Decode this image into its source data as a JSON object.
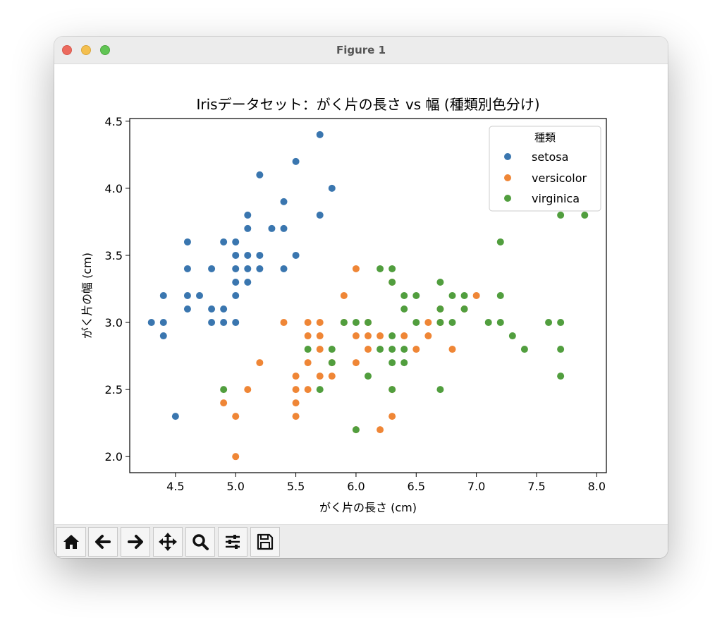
{
  "window": {
    "title": "Figure 1"
  },
  "toolbar": {
    "buttons": [
      {
        "name": "home-button",
        "icon": "home-icon"
      },
      {
        "name": "back-button",
        "icon": "arrow-left-icon"
      },
      {
        "name": "forward-button",
        "icon": "arrow-right-icon"
      },
      {
        "name": "pan-button",
        "icon": "move-icon"
      },
      {
        "name": "zoom-button",
        "icon": "magnifier-icon"
      },
      {
        "name": "configure-subplots-button",
        "icon": "sliders-icon"
      },
      {
        "name": "save-button",
        "icon": "floppy-disk-icon"
      }
    ]
  },
  "chart_data": {
    "type": "scatter",
    "title": "Irisデータセット：がく片の長さ vs 幅 (種類別色分け)",
    "xlabel": "がく片の長さ (cm)",
    "ylabel": "がく片の幅 (cm)",
    "xlim": [
      4.12,
      8.08
    ],
    "ylim": [
      1.88,
      4.52
    ],
    "xticks": [
      "4.5",
      "5.0",
      "5.5",
      "6.0",
      "6.5",
      "7.0",
      "7.5",
      "8.0"
    ],
    "yticks": [
      "2.0",
      "2.5",
      "3.0",
      "3.5",
      "4.0",
      "4.5"
    ],
    "grid": false,
    "legend": {
      "title": "種類",
      "position": "top-right"
    },
    "series": [
      {
        "name": "setosa",
        "color": "#3a76af",
        "points": [
          [
            4.3,
            3.0
          ],
          [
            4.4,
            3.2
          ],
          [
            4.4,
            3.0
          ],
          [
            4.4,
            2.9
          ],
          [
            4.5,
            2.3
          ],
          [
            4.6,
            3.6
          ],
          [
            4.6,
            3.4
          ],
          [
            4.6,
            3.2
          ],
          [
            4.6,
            3.1
          ],
          [
            4.7,
            3.2
          ],
          [
            4.8,
            3.4
          ],
          [
            4.8,
            3.1
          ],
          [
            4.8,
            3.0
          ],
          [
            4.9,
            3.6
          ],
          [
            4.9,
            3.1
          ],
          [
            4.9,
            3.0
          ],
          [
            5.0,
            3.6
          ],
          [
            5.0,
            3.5
          ],
          [
            5.0,
            3.4
          ],
          [
            5.0,
            3.3
          ],
          [
            5.0,
            3.2
          ],
          [
            5.0,
            3.0
          ],
          [
            5.1,
            3.8
          ],
          [
            5.1,
            3.7
          ],
          [
            5.1,
            3.5
          ],
          [
            5.1,
            3.4
          ],
          [
            5.1,
            3.3
          ],
          [
            5.2,
            4.1
          ],
          [
            5.2,
            3.5
          ],
          [
            5.2,
            3.4
          ],
          [
            5.3,
            3.7
          ],
          [
            5.4,
            3.9
          ],
          [
            5.4,
            3.7
          ],
          [
            5.4,
            3.4
          ],
          [
            5.5,
            4.2
          ],
          [
            5.5,
            3.5
          ],
          [
            5.7,
            4.4
          ],
          [
            5.7,
            3.8
          ],
          [
            5.8,
            4.0
          ]
        ]
      },
      {
        "name": "versicolor",
        "color": "#ef8636",
        "points": [
          [
            4.9,
            2.4
          ],
          [
            5.0,
            2.3
          ],
          [
            5.0,
            2.0
          ],
          [
            5.1,
            2.5
          ],
          [
            5.2,
            2.7
          ],
          [
            5.4,
            3.0
          ],
          [
            5.5,
            2.6
          ],
          [
            5.5,
            2.5
          ],
          [
            5.5,
            2.4
          ],
          [
            5.5,
            2.3
          ],
          [
            5.6,
            3.0
          ],
          [
            5.6,
            2.9
          ],
          [
            5.6,
            2.7
          ],
          [
            5.6,
            2.5
          ],
          [
            5.7,
            3.0
          ],
          [
            5.7,
            2.9
          ],
          [
            5.7,
            2.8
          ],
          [
            5.7,
            2.6
          ],
          [
            5.8,
            2.6
          ],
          [
            5.8,
            2.7
          ],
          [
            5.9,
            3.2
          ],
          [
            5.9,
            3.0
          ],
          [
            6.0,
            3.4
          ],
          [
            6.0,
            2.9
          ],
          [
            6.0,
            2.7
          ],
          [
            6.0,
            2.2
          ],
          [
            6.1,
            3.0
          ],
          [
            6.1,
            2.9
          ],
          [
            6.1,
            2.8
          ],
          [
            6.2,
            2.9
          ],
          [
            6.2,
            2.2
          ],
          [
            6.3,
            2.5
          ],
          [
            6.3,
            2.3
          ],
          [
            6.3,
            3.3
          ],
          [
            6.4,
            2.9
          ],
          [
            6.5,
            2.8
          ],
          [
            6.6,
            3.0
          ],
          [
            6.6,
            2.9
          ],
          [
            6.7,
            3.1
          ],
          [
            6.7,
            3.0
          ],
          [
            6.8,
            2.8
          ],
          [
            6.9,
            3.1
          ],
          [
            7.0,
            3.2
          ]
        ]
      },
      {
        "name": "virginica",
        "color": "#519e3e",
        "points": [
          [
            4.9,
            2.5
          ],
          [
            5.6,
            2.8
          ],
          [
            5.7,
            2.5
          ],
          [
            5.8,
            2.8
          ],
          [
            5.8,
            2.7
          ],
          [
            5.9,
            3.0
          ],
          [
            6.0,
            3.0
          ],
          [
            6.0,
            2.2
          ],
          [
            6.1,
            3.0
          ],
          [
            6.1,
            2.6
          ],
          [
            6.2,
            3.4
          ],
          [
            6.2,
            2.8
          ],
          [
            6.3,
            3.4
          ],
          [
            6.3,
            3.3
          ],
          [
            6.3,
            2.9
          ],
          [
            6.3,
            2.8
          ],
          [
            6.3,
            2.7
          ],
          [
            6.3,
            2.5
          ],
          [
            6.4,
            3.2
          ],
          [
            6.4,
            3.1
          ],
          [
            6.4,
            2.8
          ],
          [
            6.4,
            2.7
          ],
          [
            6.5,
            3.2
          ],
          [
            6.5,
            3.0
          ],
          [
            6.7,
            3.3
          ],
          [
            6.7,
            3.1
          ],
          [
            6.7,
            3.0
          ],
          [
            6.7,
            2.5
          ],
          [
            6.8,
            3.2
          ],
          [
            6.8,
            3.0
          ],
          [
            6.9,
            3.2
          ],
          [
            6.9,
            3.1
          ],
          [
            7.1,
            3.0
          ],
          [
            7.2,
            3.6
          ],
          [
            7.2,
            3.2
          ],
          [
            7.2,
            3.0
          ],
          [
            7.3,
            2.9
          ],
          [
            7.4,
            2.8
          ],
          [
            7.6,
            3.0
          ],
          [
            7.7,
            3.8
          ],
          [
            7.7,
            3.0
          ],
          [
            7.7,
            2.8
          ],
          [
            7.7,
            2.6
          ],
          [
            7.9,
            3.8
          ]
        ]
      }
    ]
  }
}
